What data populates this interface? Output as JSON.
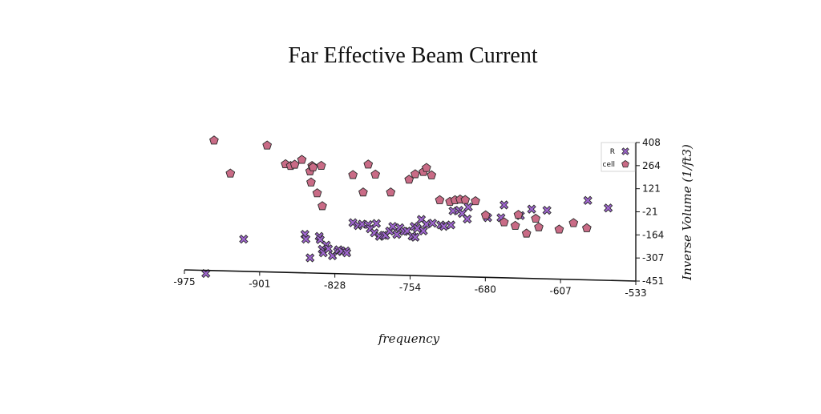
{
  "chart_data": {
    "type": "scatter",
    "title": "Far Effective Beam Current",
    "xlabel": "frequency",
    "ylabel": "Inverse Volume (1/ft3)",
    "xlim": [
      -975,
      -533
    ],
    "ylim": [
      -451,
      408
    ],
    "x_ticks": [
      "-975",
      "-901",
      "-828",
      "-754",
      "-680",
      "-607",
      "-533"
    ],
    "y_ticks": [
      "408",
      "264",
      "121",
      "-21",
      "-164",
      "-307",
      "-451"
    ],
    "legend": {
      "position": "top-right",
      "entries": [
        "R",
        "cell"
      ]
    },
    "grid": false,
    "series": [
      {
        "name": "R",
        "marker": "x",
        "color": "#a066d0",
        "points": [
          [
            -954,
            -404
          ],
          [
            -917,
            -191
          ],
          [
            -857,
            -161
          ],
          [
            -856,
            -191
          ],
          [
            -852,
            -307
          ],
          [
            -843,
            -174
          ],
          [
            -842,
            -194
          ],
          [
            -840,
            -254
          ],
          [
            -839,
            -276
          ],
          [
            -836,
            -228
          ],
          [
            -834,
            -251
          ],
          [
            -830,
            -294
          ],
          [
            -825,
            -268
          ],
          [
            -824,
            -257
          ],
          [
            -821,
            -266
          ],
          [
            -817,
            -264
          ],
          [
            -816,
            -276
          ],
          [
            -810,
            -89
          ],
          [
            -805,
            -107
          ],
          [
            -801,
            -98
          ],
          [
            -795,
            -101
          ],
          [
            -793,
            -127
          ],
          [
            -789,
            -152
          ],
          [
            -787,
            -94
          ],
          [
            -784,
            -174
          ],
          [
            -780,
            -167
          ],
          [
            -778,
            -168
          ],
          [
            -774,
            -141
          ],
          [
            -771,
            -112
          ],
          [
            -767,
            -162
          ],
          [
            -764,
            -120
          ],
          [
            -760,
            -143
          ],
          [
            -757,
            -141
          ],
          [
            -752,
            -172
          ],
          [
            -750,
            -112
          ],
          [
            -749,
            -179
          ],
          [
            -747,
            -124
          ],
          [
            -743,
            -69
          ],
          [
            -741,
            -140
          ],
          [
            -738,
            -98
          ],
          [
            -732,
            -92
          ],
          [
            -724,
            -103
          ],
          [
            -721,
            -112
          ],
          [
            -714,
            -103
          ],
          [
            -712,
            -16
          ],
          [
            -706,
            -12
          ],
          [
            -703,
            -32
          ],
          [
            -698,
            -66
          ],
          [
            -697,
            8
          ],
          [
            -678,
            -58
          ],
          [
            -665,
            -58
          ],
          [
            -662,
            21
          ],
          [
            -646,
            -45
          ],
          [
            -635,
            -5
          ],
          [
            -620,
            -12
          ],
          [
            -580,
            49
          ],
          [
            -560,
            2
          ]
        ]
      },
      {
        "name": "cell",
        "marker": "pentagon",
        "color": "#c96b86",
        "points": [
          [
            -946,
            421
          ],
          [
            -930,
            216
          ],
          [
            -894,
            390
          ],
          [
            -876,
            274
          ],
          [
            -871,
            263
          ],
          [
            -867,
            271
          ],
          [
            -860,
            301
          ],
          [
            -852,
            230
          ],
          [
            -851,
            161
          ],
          [
            -850,
            263
          ],
          [
            -849,
            255
          ],
          [
            -845,
            94
          ],
          [
            -841,
            264
          ],
          [
            -840,
            14
          ],
          [
            -810,
            207
          ],
          [
            -800,
            99
          ],
          [
            -795,
            272
          ],
          [
            -788,
            210
          ],
          [
            -773,
            99
          ],
          [
            -755,
            178
          ],
          [
            -749,
            212
          ],
          [
            -741,
            226
          ],
          [
            -738,
            251
          ],
          [
            -733,
            205
          ],
          [
            -725,
            51
          ],
          [
            -715,
            41
          ],
          [
            -710,
            51
          ],
          [
            -705,
            55
          ],
          [
            -700,
            52
          ],
          [
            -690,
            45
          ],
          [
            -680,
            -43
          ],
          [
            -662,
            -86
          ],
          [
            -651,
            -108
          ],
          [
            -648,
            -40
          ],
          [
            -640,
            -156
          ],
          [
            -631,
            -64
          ],
          [
            -628,
            -117
          ],
          [
            -608,
            -131
          ],
          [
            -594,
            -91
          ],
          [
            -581,
            -123
          ]
        ]
      }
    ]
  }
}
